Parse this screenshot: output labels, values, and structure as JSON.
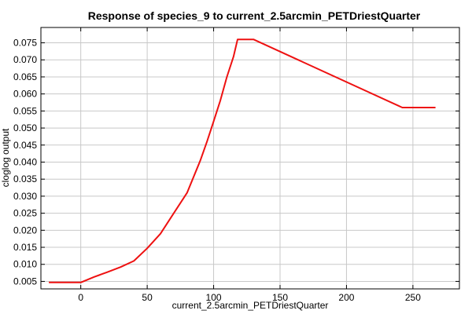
{
  "chart_data": {
    "type": "line",
    "title": "Response of species_9 to current_2.5arcmin_PETDriestQuarter",
    "xlabel": "current_2.5arcmin_PETDriestQuarter",
    "ylabel": "cloglog output",
    "xlim": [
      -30,
      285
    ],
    "ylim": [
      0.0028,
      0.0795
    ],
    "grid": true,
    "line_color": "#ee1111",
    "xticks": [
      0,
      50,
      100,
      150,
      200,
      250
    ],
    "xtick_labels": [
      "0",
      "50",
      "100",
      "150",
      "200",
      "250"
    ],
    "yticks": [
      0.005,
      0.01,
      0.015,
      0.02,
      0.025,
      0.03,
      0.035,
      0.04,
      0.045,
      0.05,
      0.055,
      0.06,
      0.065,
      0.07,
      0.075
    ],
    "ytick_labels": [
      "0.005",
      "0.010",
      "0.015",
      "0.020",
      "0.025",
      "0.030",
      "0.035",
      "0.040",
      "0.045",
      "0.050",
      "0.055",
      "0.060",
      "0.065",
      "0.070",
      "0.075"
    ],
    "series": [
      {
        "x": [
          -24,
          0,
          10,
          20,
          30,
          40,
          50,
          60,
          70,
          80,
          90,
          95,
          100,
          105,
          110,
          115,
          118,
          130,
          242,
          267
        ],
        "y": [
          0.0047,
          0.0047,
          0.0063,
          0.0077,
          0.0092,
          0.011,
          0.0147,
          0.019,
          0.025,
          0.031,
          0.0405,
          0.046,
          0.052,
          0.058,
          0.065,
          0.071,
          0.076,
          0.076,
          0.056,
          0.056
        ]
      }
    ]
  }
}
